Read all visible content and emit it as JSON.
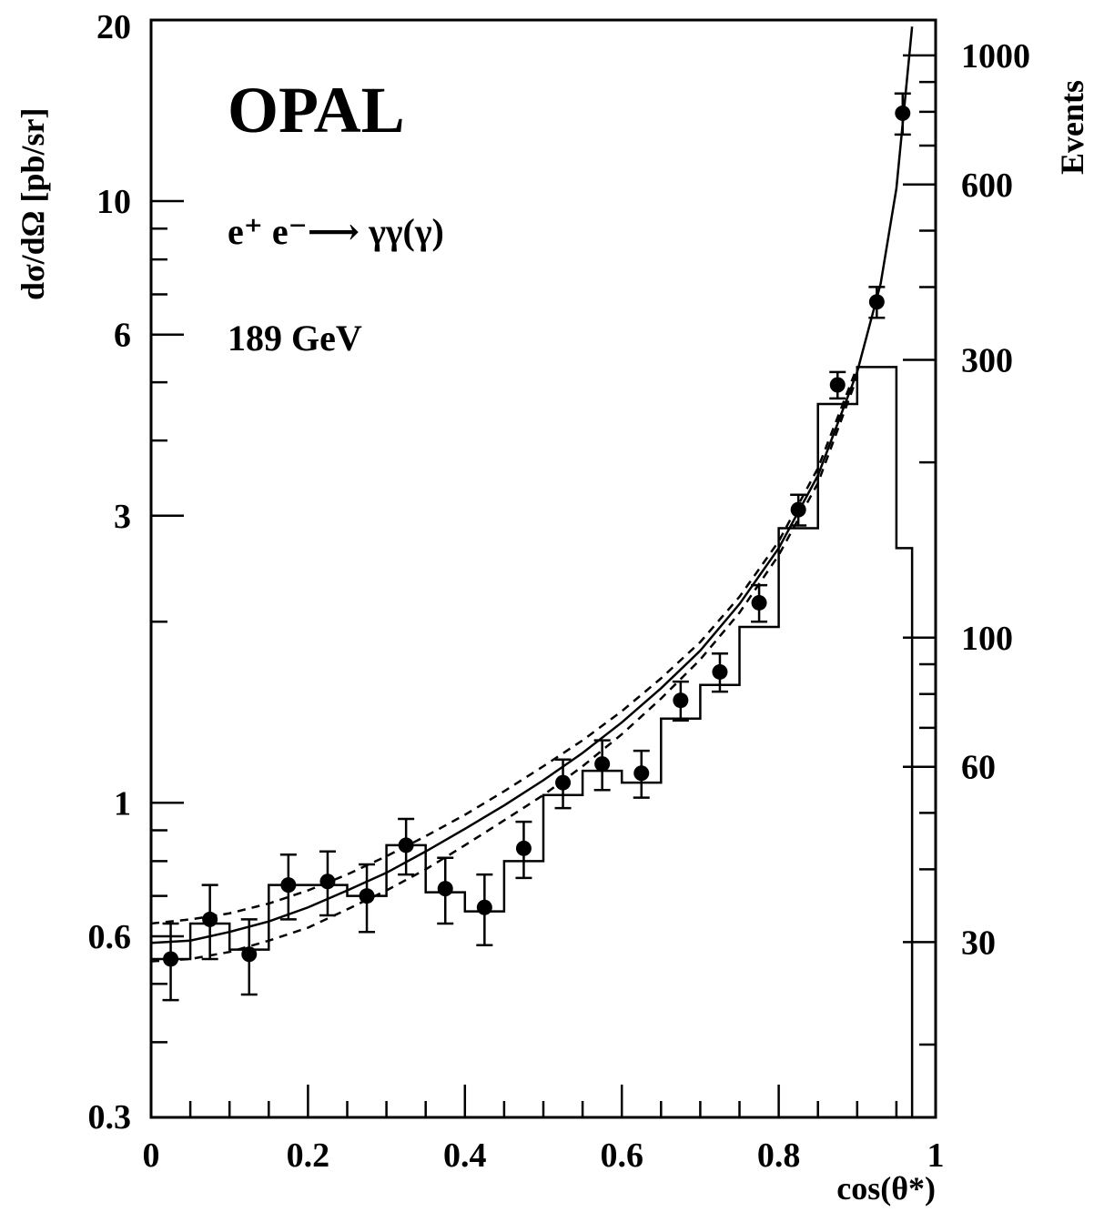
{
  "chart_data": {
    "type": "scatter",
    "annotations": {
      "experiment": "OPAL",
      "process": "e⁺ e⁻⟶ γγ(γ)",
      "energy": "189 GeV"
    },
    "xlabel": "cos(θ*)",
    "ylabel": "dσ/dΩ  [pb/sr]",
    "y2label": "Events",
    "xlim": [
      0,
      1
    ],
    "ylim": [
      0.3,
      20
    ],
    "yscale": "log",
    "y2lim": [
      15,
      1150
    ],
    "y2scale": "log",
    "x_ticks": [
      "0",
      "0.2",
      "0.4",
      "0.6",
      "0.8",
      "1"
    ],
    "y_ticks": [
      {
        "value": 0.3,
        "label": "0.3"
      },
      {
        "value": 0.6,
        "label": "0.6"
      },
      {
        "value": 1,
        "label": "1"
      },
      {
        "value": 3,
        "label": "3"
      },
      {
        "value": 6,
        "label": "6"
      },
      {
        "value": 10,
        "label": "10"
      },
      {
        "value": 20,
        "label": "20"
      }
    ],
    "y2_ticks": [
      {
        "value": 30,
        "label": "30"
      },
      {
        "value": 60,
        "label": "60"
      },
      {
        "value": 100,
        "label": "100"
      },
      {
        "value": 300,
        "label": "300"
      },
      {
        "value": 600,
        "label": "600"
      },
      {
        "value": 1000,
        "label": "1000"
      }
    ],
    "data_points": {
      "x": [
        0.025,
        0.075,
        0.125,
        0.175,
        0.225,
        0.275,
        0.325,
        0.375,
        0.425,
        0.475,
        0.525,
        0.575,
        0.625,
        0.675,
        0.725,
        0.775,
        0.825,
        0.875,
        0.925,
        0.958
      ],
      "y": [
        0.55,
        0.64,
        0.56,
        0.73,
        0.74,
        0.7,
        0.85,
        0.72,
        0.67,
        0.84,
        1.08,
        1.16,
        1.12,
        1.48,
        1.65,
        2.15,
        3.07,
        4.95,
        6.8,
        14.0
      ],
      "y_err": [
        0.08,
        0.09,
        0.08,
        0.09,
        0.09,
        0.09,
        0.09,
        0.09,
        0.09,
        0.09,
        0.1,
        0.11,
        0.1,
        0.11,
        0.12,
        0.15,
        0.18,
        0.25,
        0.4,
        1.1
      ]
    },
    "histogram": {
      "edges": [
        0,
        0.05,
        0.1,
        0.15,
        0.2,
        0.25,
        0.3,
        0.35,
        0.4,
        0.45,
        0.5,
        0.55,
        0.6,
        0.65,
        0.7,
        0.75,
        0.8,
        0.85,
        0.9,
        0.95,
        0.97
      ],
      "values": [
        0.55,
        0.63,
        0.57,
        0.73,
        0.73,
        0.7,
        0.85,
        0.71,
        0.66,
        0.8,
        1.03,
        1.13,
        1.08,
        1.38,
        1.57,
        1.96,
        2.86,
        4.6,
        5.3,
        2.65
      ]
    },
    "theory_curve": {
      "x": [
        0,
        0.05,
        0.1,
        0.15,
        0.2,
        0.25,
        0.3,
        0.35,
        0.4,
        0.45,
        0.5,
        0.55,
        0.6,
        0.65,
        0.7,
        0.75,
        0.8,
        0.85,
        0.9,
        0.93,
        0.95,
        0.97
      ],
      "y": [
        0.585,
        0.59,
        0.61,
        0.635,
        0.67,
        0.715,
        0.765,
        0.83,
        0.905,
        0.99,
        1.09,
        1.21,
        1.36,
        1.55,
        1.79,
        2.14,
        2.65,
        3.5,
        5.2,
        7.3,
        10.5,
        19.5
      ]
    },
    "band_upper": {
      "x": [
        0,
        0.05,
        0.1,
        0.15,
        0.2,
        0.25,
        0.3,
        0.35,
        0.4,
        0.45,
        0.5,
        0.55,
        0.6,
        0.65,
        0.7,
        0.75,
        0.8,
        0.85,
        0.9
      ],
      "y": [
        0.63,
        0.64,
        0.655,
        0.68,
        0.715,
        0.76,
        0.815,
        0.88,
        0.955,
        1.045,
        1.15,
        1.27,
        1.42,
        1.61,
        1.85,
        2.2,
        2.72,
        3.6,
        5.3
      ]
    },
    "band_lower": {
      "x": [
        0,
        0.05,
        0.1,
        0.15,
        0.2,
        0.25,
        0.3,
        0.35,
        0.4,
        0.45,
        0.5,
        0.55,
        0.6,
        0.65,
        0.7,
        0.75,
        0.8,
        0.85,
        0.9
      ],
      "y": [
        0.545,
        0.55,
        0.565,
        0.59,
        0.62,
        0.665,
        0.715,
        0.775,
        0.85,
        0.935,
        1.03,
        1.15,
        1.3,
        1.49,
        1.73,
        2.07,
        2.58,
        3.4,
        5.1
      ]
    }
  }
}
